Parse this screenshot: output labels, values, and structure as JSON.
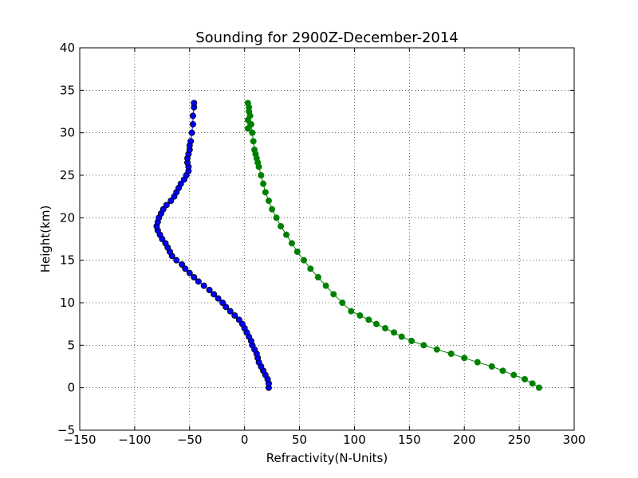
{
  "chart_data": {
    "type": "scatter",
    "title": "Sounding for 2900Z-December-2014",
    "xlabel": "Refractivity(N-Units)",
    "ylabel": "Height(km)",
    "xlim": [
      -150,
      300
    ],
    "ylim": [
      -5,
      40
    ],
    "xticks": [
      -150,
      -100,
      -50,
      0,
      50,
      100,
      150,
      200,
      250,
      300
    ],
    "yticks": [
      -5,
      0,
      5,
      10,
      15,
      20,
      25,
      30,
      35,
      40
    ],
    "xtick_labels": [
      "−150",
      "−100",
      "−50",
      "0",
      "50",
      "100",
      "150",
      "200",
      "250",
      "300"
    ],
    "ytick_labels": [
      "−5",
      "0",
      "5",
      "10",
      "15",
      "20",
      "25",
      "30",
      "35",
      "40"
    ],
    "grid": true,
    "series": [
      {
        "color": "#0000ff",
        "edge_color": "#000000",
        "x": [
          22,
          22,
          21,
          19,
          17,
          15,
          13,
          12,
          11,
          9,
          7,
          6,
          4,
          2,
          0,
          -2,
          -5,
          -9,
          -13,
          -17,
          -20,
          -24,
          -28,
          -32,
          -37,
          -42,
          -46,
          -50,
          -54,
          -57,
          -62,
          -66,
          -68,
          -70,
          -72,
          -75,
          -77,
          -79,
          -80,
          -79,
          -78,
          -76,
          -74,
          -71,
          -67,
          -64,
          -62,
          -60,
          -58,
          -55,
          -53,
          -51,
          -51,
          -52,
          -52,
          -51,
          -50,
          -50,
          -49,
          -48,
          -47,
          -47,
          -46,
          -46
        ],
        "y": [
          0,
          0.5,
          1,
          1.5,
          2,
          2.5,
          3,
          3.5,
          4,
          4.5,
          5,
          5.5,
          6,
          6.5,
          7,
          7.5,
          8,
          8.5,
          9,
          9.5,
          10,
          10.5,
          11,
          11.5,
          12,
          12.5,
          13,
          13.5,
          14,
          14.5,
          15,
          15.5,
          16,
          16.5,
          17,
          17.5,
          18,
          18.5,
          19,
          19.5,
          20,
          20.5,
          21,
          21.5,
          22,
          22.5,
          23,
          23.5,
          24,
          24.5,
          25,
          25.5,
          26,
          26.5,
          27,
          27.5,
          28,
          28.5,
          29,
          30,
          31,
          32,
          33,
          33.5
        ]
      },
      {
        "color": "#008000",
        "edge_color": "#008000",
        "x": [
          268,
          262,
          255,
          245,
          235,
          225,
          212,
          200,
          188,
          175,
          163,
          152,
          143,
          136,
          128,
          120,
          113,
          105,
          97,
          89,
          81,
          74,
          67,
          60,
          54,
          48,
          43,
          38,
          33,
          29,
          25,
          22,
          19,
          17,
          15,
          13,
          12,
          11,
          10,
          9,
          8,
          7,
          6,
          5,
          4,
          4,
          3,
          3,
          3
        ],
        "y": [
          0,
          0.5,
          1,
          1.5,
          2,
          2.5,
          3,
          3.5,
          4,
          4.5,
          5,
          5.5,
          6,
          6.5,
          7,
          7.5,
          8,
          8.5,
          9,
          10,
          11,
          12,
          13,
          14,
          15,
          16,
          17,
          18,
          19,
          20,
          21,
          22,
          23,
          24,
          25,
          26,
          26.5,
          27,
          27.5,
          28,
          29,
          30,
          31,
          32,
          32.5,
          33,
          33.5,
          31.5,
          30.5
        ]
      }
    ]
  }
}
